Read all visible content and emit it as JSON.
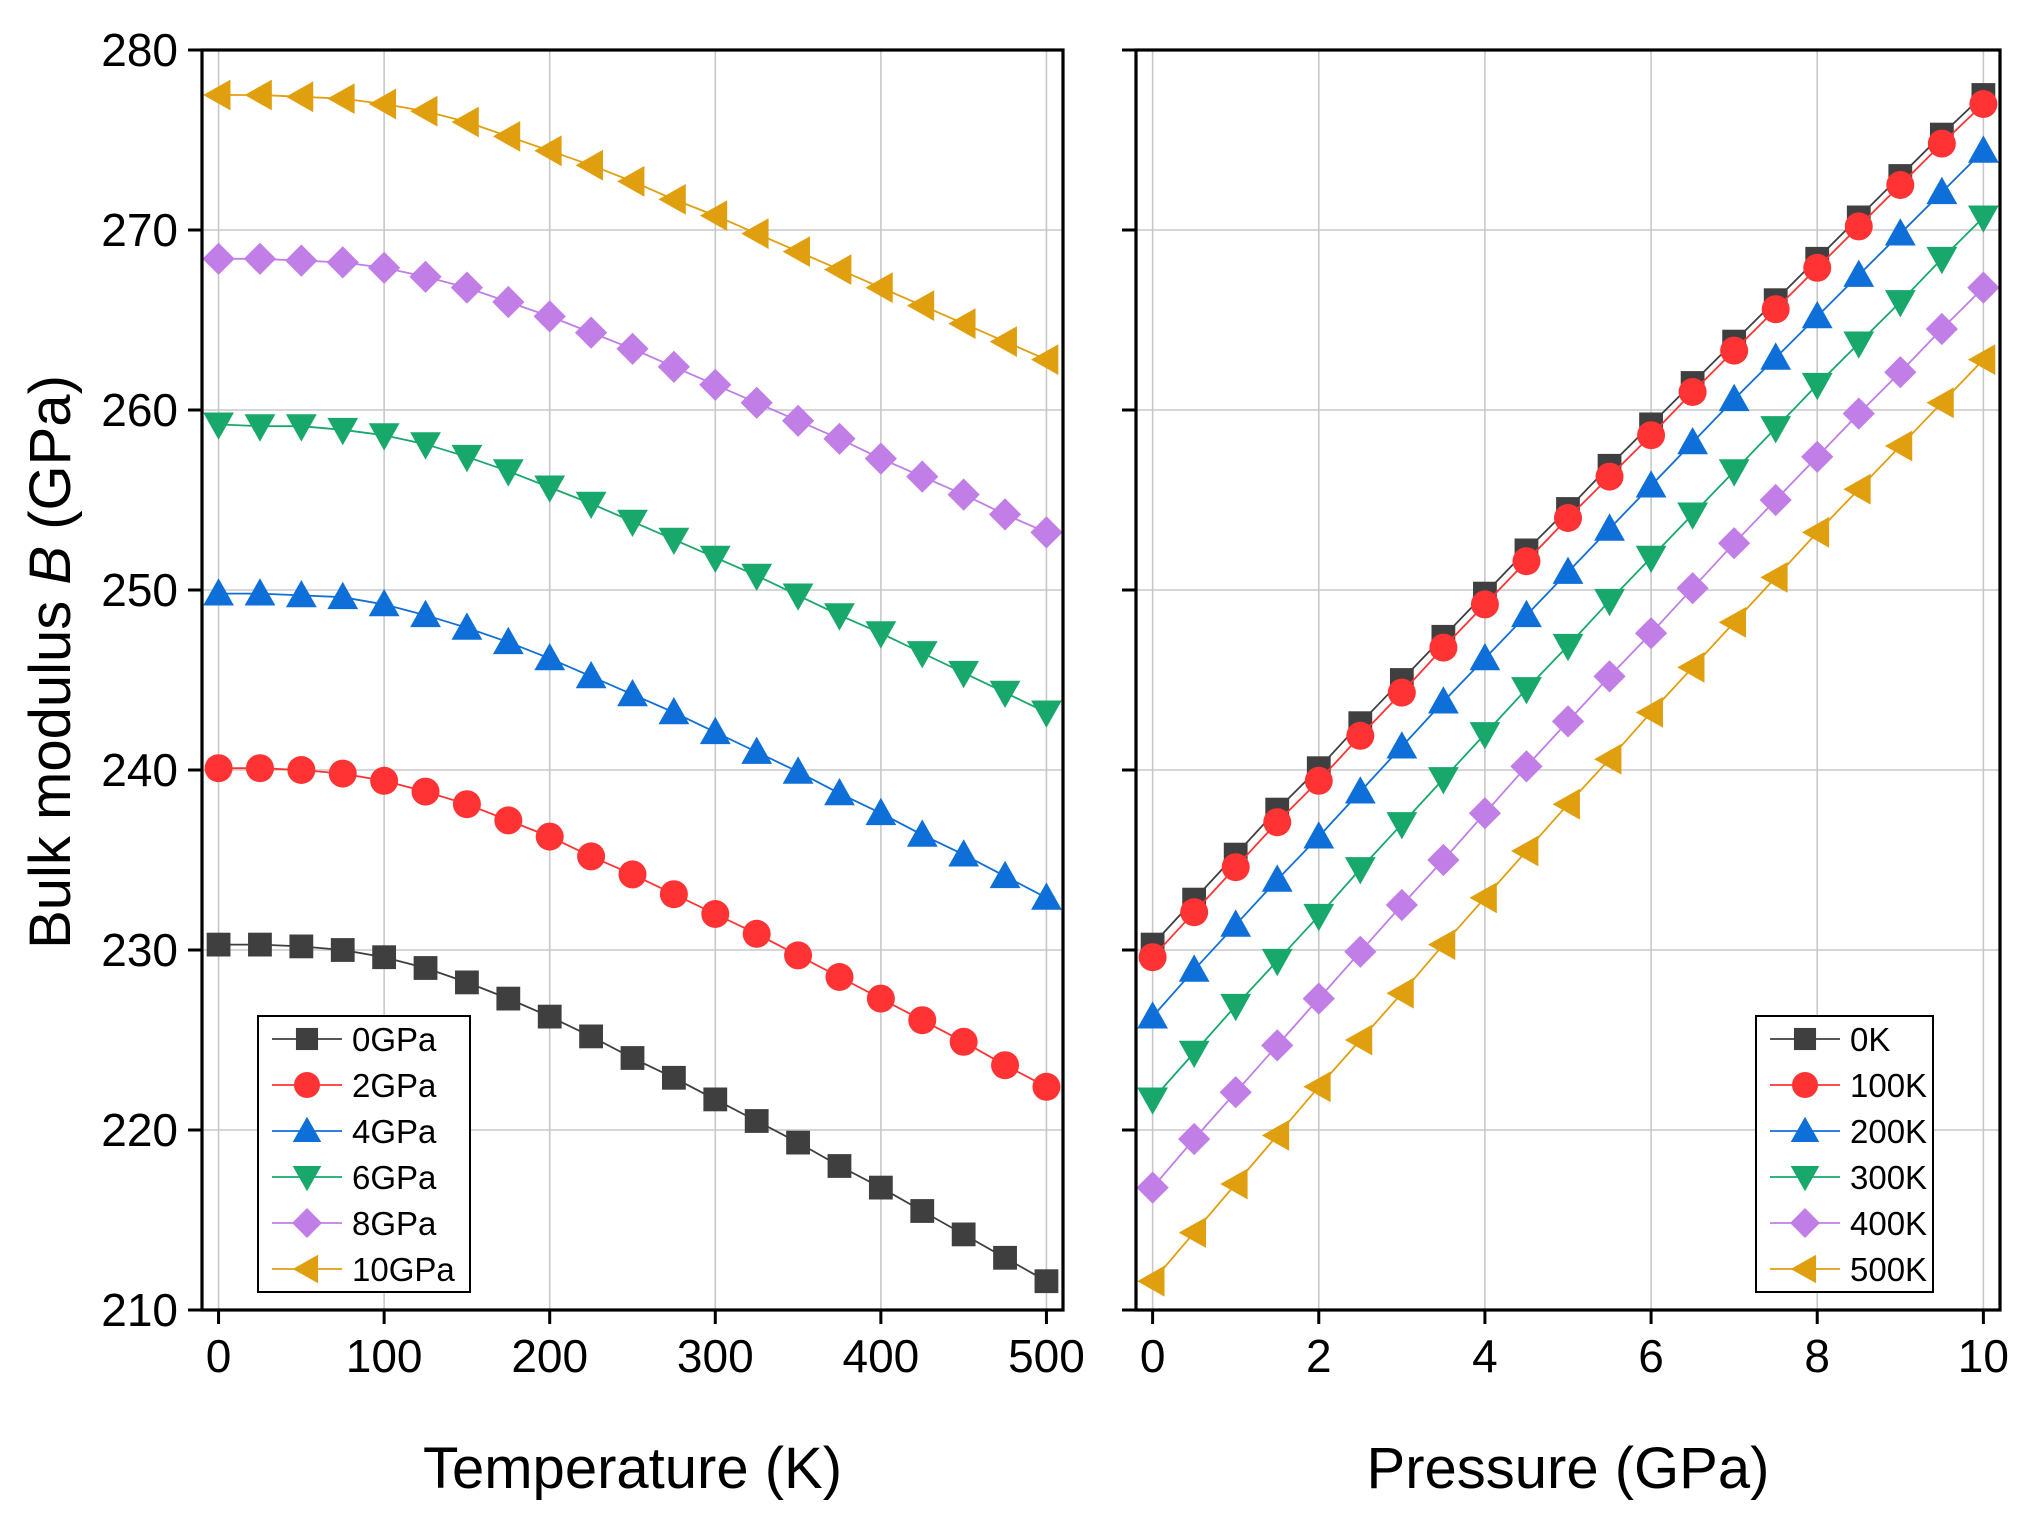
{
  "figure": {
    "ylabel_prefix": "Bulk modulus ",
    "ylabel_symbol": "B",
    "ylabel_suffix": " (GPa)"
  },
  "chart_data": [
    {
      "type": "line",
      "xlabel": "Temperature (K)",
      "ylabel": "Bulk modulus B (GPa)",
      "xlim": [
        -10,
        510
      ],
      "ylim": [
        210,
        280
      ],
      "xticks": [
        0,
        100,
        200,
        300,
        400,
        500
      ],
      "xtick_labels": [
        "0",
        "100",
        "200",
        "300",
        "400",
        "500"
      ],
      "yticks": [
        210,
        220,
        230,
        240,
        250,
        260,
        270,
        280
      ],
      "ytick_labels": [
        "210",
        "220",
        "230",
        "240",
        "250",
        "260",
        "270",
        "280"
      ],
      "grid": true,
      "legend_position": "bottom-left",
      "x": [
        0,
        25,
        50,
        75,
        100,
        125,
        150,
        175,
        200,
        225,
        250,
        275,
        300,
        325,
        350,
        375,
        400,
        425,
        450,
        475,
        500
      ],
      "series": [
        {
          "name": "0GPa",
          "color": "#3f3f3f",
          "marker": "square",
          "values": [
            230.3,
            230.3,
            230.2,
            230.0,
            229.6,
            229.0,
            228.2,
            227.3,
            226.3,
            225.2,
            224.0,
            222.9,
            221.7,
            220.5,
            219.3,
            218.0,
            216.8,
            215.5,
            214.2,
            212.9,
            211.6
          ]
        },
        {
          "name": "2GPa",
          "color": "#ff3333",
          "marker": "circle",
          "values": [
            240.1,
            240.1,
            240.0,
            239.8,
            239.4,
            238.8,
            238.1,
            237.2,
            236.3,
            235.2,
            234.2,
            233.1,
            232.0,
            230.9,
            229.7,
            228.5,
            227.3,
            226.1,
            224.9,
            223.6,
            222.4
          ]
        },
        {
          "name": "4GPa",
          "color": "#0f6fd8",
          "marker": "triangle-up",
          "values": [
            249.8,
            249.8,
            249.7,
            249.6,
            249.2,
            248.6,
            247.9,
            247.1,
            246.2,
            245.2,
            244.2,
            243.2,
            242.1,
            241.0,
            239.9,
            238.7,
            237.6,
            236.4,
            235.3,
            234.1,
            232.9
          ]
        },
        {
          "name": "6GPa",
          "color": "#18a86b",
          "marker": "triangle-down",
          "values": [
            259.2,
            259.1,
            259.1,
            258.9,
            258.6,
            258.1,
            257.4,
            256.6,
            255.7,
            254.8,
            253.8,
            252.8,
            251.8,
            250.8,
            249.7,
            248.6,
            247.6,
            246.5,
            245.4,
            244.3,
            243.2
          ]
        },
        {
          "name": "8GPa",
          "color": "#c07ee6",
          "marker": "diamond",
          "values": [
            268.4,
            268.4,
            268.3,
            268.2,
            267.9,
            267.4,
            266.8,
            266.0,
            265.2,
            264.3,
            263.4,
            262.4,
            261.4,
            260.4,
            259.4,
            258.4,
            257.3,
            256.3,
            255.3,
            254.2,
            253.2
          ]
        },
        {
          "name": "10GPa",
          "color": "#e09f0e",
          "marker": "triangle-left",
          "values": [
            277.5,
            277.5,
            277.4,
            277.3,
            277.0,
            276.6,
            276.0,
            275.2,
            274.4,
            273.6,
            272.7,
            271.7,
            270.8,
            269.8,
            268.8,
            267.8,
            266.8,
            265.8,
            264.8,
            263.8,
            262.8
          ]
        }
      ]
    },
    {
      "type": "line",
      "xlabel": "Pressure (GPa)",
      "ylabel": "Bulk modulus B (GPa)",
      "xlim": [
        -0.2,
        10.2
      ],
      "ylim": [
        210,
        280
      ],
      "xticks": [
        0,
        2,
        4,
        6,
        8,
        10
      ],
      "xtick_labels": [
        "0",
        "2",
        "4",
        "6",
        "8",
        "10"
      ],
      "yticks": [
        210,
        220,
        230,
        240,
        250,
        260,
        270,
        280
      ],
      "grid": true,
      "legend_position": "bottom-right",
      "x": [
        0,
        0.5,
        1,
        1.5,
        2,
        2.5,
        3,
        3.5,
        4,
        4.5,
        5,
        5.5,
        6,
        6.5,
        7,
        7.5,
        8,
        8.5,
        9,
        9.5,
        10
      ],
      "series": [
        {
          "name": "0K",
          "color": "#3f3f3f",
          "marker": "square",
          "values": [
            230.3,
            232.8,
            235.3,
            237.8,
            240.1,
            242.6,
            245.0,
            247.4,
            249.8,
            252.2,
            254.5,
            256.9,
            259.2,
            261.5,
            263.8,
            266.1,
            268.4,
            270.7,
            273.0,
            275.3,
            277.5
          ]
        },
        {
          "name": "100K",
          "color": "#ff3333",
          "marker": "circle",
          "values": [
            229.6,
            232.1,
            234.6,
            237.1,
            239.4,
            241.9,
            244.3,
            246.8,
            249.2,
            251.6,
            254.0,
            256.3,
            258.6,
            261.0,
            263.3,
            265.6,
            267.9,
            270.2,
            272.5,
            274.8,
            277.0
          ]
        },
        {
          "name": "200K",
          "color": "#0f6fd8",
          "marker": "triangle-up",
          "values": [
            226.3,
            228.9,
            231.4,
            233.9,
            236.3,
            238.8,
            241.3,
            243.8,
            246.2,
            248.6,
            251.0,
            253.4,
            255.8,
            258.2,
            260.6,
            262.9,
            265.2,
            267.5,
            269.8,
            272.1,
            274.4
          ]
        },
        {
          "name": "300K",
          "color": "#18a86b",
          "marker": "triangle-down",
          "values": [
            221.7,
            224.3,
            226.9,
            229.4,
            231.9,
            234.5,
            237.0,
            239.5,
            242.0,
            244.5,
            246.9,
            249.4,
            251.8,
            254.2,
            256.6,
            259.0,
            261.4,
            263.7,
            266.0,
            268.4,
            270.7
          ]
        },
        {
          "name": "400K",
          "color": "#c07ee6",
          "marker": "diamond",
          "values": [
            216.8,
            219.5,
            222.1,
            224.7,
            227.3,
            229.9,
            232.5,
            235.0,
            237.6,
            240.2,
            242.7,
            245.2,
            247.6,
            250.1,
            252.6,
            255.0,
            257.4,
            259.8,
            262.1,
            264.5,
            266.8
          ]
        },
        {
          "name": "500K",
          "color": "#e09f0e",
          "marker": "triangle-left",
          "values": [
            211.6,
            214.3,
            217.0,
            219.7,
            222.4,
            225.0,
            227.6,
            230.3,
            232.9,
            235.5,
            238.1,
            240.6,
            243.2,
            245.7,
            248.2,
            250.7,
            253.2,
            255.6,
            258.0,
            260.4,
            262.8
          ]
        }
      ]
    }
  ]
}
